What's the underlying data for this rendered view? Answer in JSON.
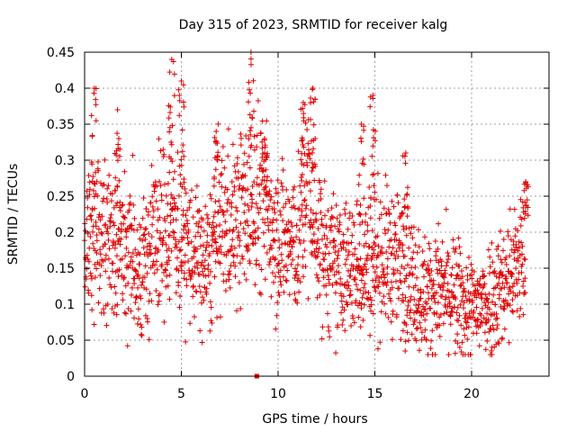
{
  "chart_data": {
    "type": "scatter",
    "title": "Day 315 of 2023, SRMTID for receiver kalg",
    "xlabel": "GPS time / hours",
    "ylabel": "SRMTID / TECUs",
    "xlim": [
      0,
      24
    ],
    "ylim": [
      0,
      0.45
    ],
    "xticks": [
      0,
      5,
      10,
      15,
      20
    ],
    "xtick_labels": [
      "0",
      "5",
      "10",
      "15",
      "20"
    ],
    "yticks": [
      0,
      0.05,
      0.1,
      0.15,
      0.2,
      0.25,
      0.3,
      0.35,
      0.4,
      0.45
    ],
    "ytick_labels": [
      "0",
      "0.05",
      "0.1",
      "0.15",
      "0.2",
      "0.25",
      "0.3",
      "0.35",
      "0.4",
      "0.45"
    ],
    "grid": true,
    "marker": "plus",
    "color": "#e00000",
    "x_range_of_points": [
      0,
      22.8
    ],
    "trend_anchors": [
      {
        "x": 0.0,
        "y": 0.2
      },
      {
        "x": 1.0,
        "y": 0.19
      },
      {
        "x": 2.0,
        "y": 0.18
      },
      {
        "x": 2.8,
        "y": 0.15
      },
      {
        "x": 3.6,
        "y": 0.19
      },
      {
        "x": 4.6,
        "y": 0.22
      },
      {
        "x": 5.5,
        "y": 0.17
      },
      {
        "x": 6.3,
        "y": 0.15
      },
      {
        "x": 7.0,
        "y": 0.21
      },
      {
        "x": 8.0,
        "y": 0.22
      },
      {
        "x": 9.0,
        "y": 0.25
      },
      {
        "x": 10.0,
        "y": 0.2
      },
      {
        "x": 11.0,
        "y": 0.18
      },
      {
        "x": 11.5,
        "y": 0.26
      },
      {
        "x": 12.3,
        "y": 0.17
      },
      {
        "x": 13.0,
        "y": 0.15
      },
      {
        "x": 14.0,
        "y": 0.15
      },
      {
        "x": 15.0,
        "y": 0.17
      },
      {
        "x": 16.0,
        "y": 0.16
      },
      {
        "x": 16.8,
        "y": 0.14
      },
      {
        "x": 17.6,
        "y": 0.11
      },
      {
        "x": 18.5,
        "y": 0.12
      },
      {
        "x": 19.5,
        "y": 0.1
      },
      {
        "x": 20.0,
        "y": 0.09
      },
      {
        "x": 21.0,
        "y": 0.11
      },
      {
        "x": 22.0,
        "y": 0.14
      },
      {
        "x": 22.8,
        "y": 0.17
      }
    ],
    "spikes": [
      {
        "x": 0.5,
        "y": 0.4
      },
      {
        "x": 1.7,
        "y": 0.37
      },
      {
        "x": 4.5,
        "y": 0.44
      },
      {
        "x": 5.0,
        "y": 0.41
      },
      {
        "x": 6.8,
        "y": 0.34
      },
      {
        "x": 8.6,
        "y": 0.45
      },
      {
        "x": 9.3,
        "y": 0.33
      },
      {
        "x": 11.3,
        "y": 0.38
      },
      {
        "x": 11.8,
        "y": 0.4
      },
      {
        "x": 14.3,
        "y": 0.35
      },
      {
        "x": 14.9,
        "y": 0.39
      },
      {
        "x": 16.6,
        "y": 0.31
      },
      {
        "x": 22.8,
        "y": 0.27
      }
    ],
    "outliers": [
      {
        "x": 8.9,
        "y": 0.0
      }
    ]
  }
}
